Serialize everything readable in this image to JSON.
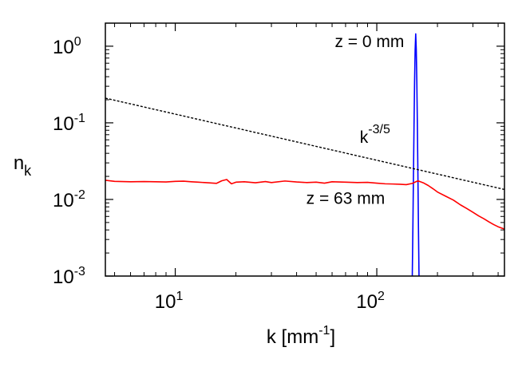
{
  "chart_data": {
    "type": "line",
    "title": "",
    "xlabel": "k [mm",
    "xlabel_sup": "-1",
    "xlabel_tail": "]",
    "ylabel": "n",
    "ylabel_sub": "k",
    "xscale": "log",
    "yscale": "log",
    "xlim": [
      4.5,
      430
    ],
    "ylim": [
      0.001,
      2
    ],
    "grid": false,
    "legend": "none",
    "x_ticks": [
      {
        "value": 10,
        "base": "10",
        "exp": "1"
      },
      {
        "value": 100,
        "base": "10",
        "exp": "2"
      }
    ],
    "y_ticks": [
      {
        "value": 0.001,
        "base": "10",
        "exp": "-3"
      },
      {
        "value": 0.01,
        "base": "10",
        "exp": "-2"
      },
      {
        "value": 0.1,
        "base": "10",
        "exp": "-1"
      },
      {
        "value": 1,
        "base": "10",
        "exp": "0"
      }
    ],
    "series": [
      {
        "color": "#0000ff",
        "style": "solid",
        "x": [
          150,
          151,
          152,
          153,
          154,
          155,
          156,
          157,
          158,
          159,
          160,
          161,
          162
        ],
        "y": [
          0.001,
          0.004,
          0.02,
          0.09,
          0.35,
          0.9,
          1.45,
          0.9,
          0.35,
          0.09,
          0.02,
          0.004,
          0.001
        ]
      },
      {
        "color": "#ff0000",
        "style": "solid",
        "x": [
          4.5,
          5,
          6,
          7,
          8,
          9,
          10,
          11,
          12,
          13,
          14,
          15,
          16,
          17,
          18,
          19,
          20,
          22,
          25,
          28,
          30,
          35,
          40,
          45,
          50,
          55,
          60,
          70,
          80,
          90,
          100,
          110,
          120,
          130,
          140,
          150,
          160,
          170,
          180,
          190,
          200,
          220,
          240,
          260,
          280,
          300,
          320,
          340,
          360,
          380,
          400,
          430
        ],
        "y": [
          0.0178,
          0.0172,
          0.017,
          0.0171,
          0.017,
          0.0169,
          0.0172,
          0.0173,
          0.017,
          0.0168,
          0.0166,
          0.0164,
          0.0162,
          0.0175,
          0.0182,
          0.016,
          0.0168,
          0.017,
          0.0165,
          0.0171,
          0.0166,
          0.0174,
          0.0169,
          0.0166,
          0.0168,
          0.0163,
          0.017,
          0.0168,
          0.0166,
          0.0167,
          0.0163,
          0.016,
          0.0159,
          0.0158,
          0.0156,
          0.0162,
          0.0175,
          0.0165,
          0.0152,
          0.0138,
          0.0125,
          0.011,
          0.0098,
          0.0085,
          0.0076,
          0.0068,
          0.0061,
          0.0056,
          0.0051,
          0.0047,
          0.0044,
          0.0041
        ]
      },
      {
        "color": "#000000",
        "style": "dashed",
        "x": [
          4.5,
          430
        ],
        "y": [
          0.21,
          0.0135
        ]
      }
    ],
    "annotations": [
      {
        "text": "z = 0 mm",
        "x": 92,
        "y": 0.98
      },
      {
        "text": "k",
        "sup": "-3/5",
        "x": 98,
        "y": 0.055
      },
      {
        "text": "z = 63 mm",
        "x": 70,
        "y": 0.0088
      }
    ]
  }
}
